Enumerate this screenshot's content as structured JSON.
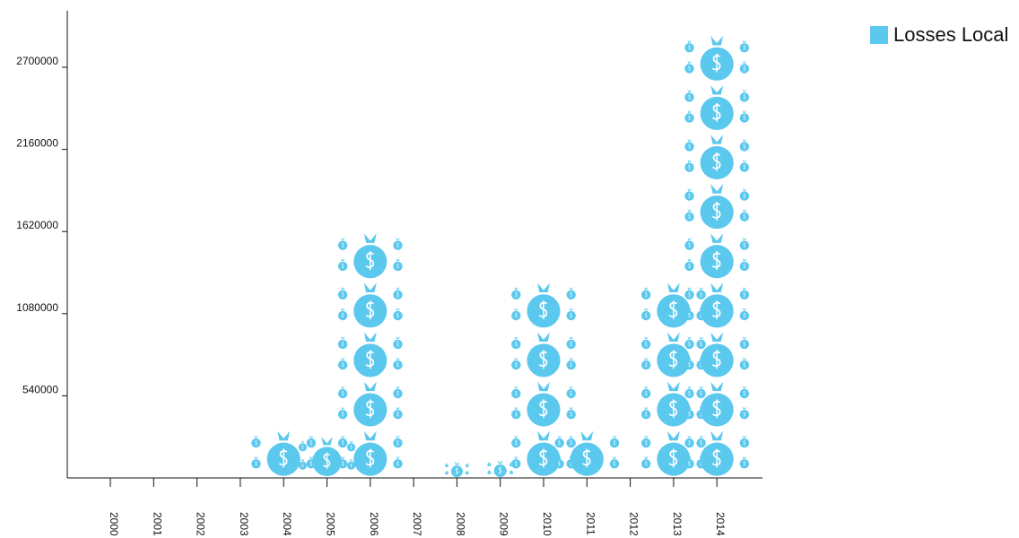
{
  "chart_data": {
    "type": "bar",
    "categories": [
      "2000",
      "2001",
      "2002",
      "2003",
      "2004",
      "2005",
      "2006",
      "2007",
      "2008",
      "2009",
      "2010",
      "2011",
      "2012",
      "2013",
      "2014"
    ],
    "series": [
      {
        "name": "Losses Local",
        "values": [
          0,
          0,
          0,
          0,
          500000,
          300000,
          1790000,
          0,
          120000,
          130000,
          1430000,
          440000,
          20000,
          1430000,
          2980000
        ]
      }
    ],
    "yticks": [
      540000,
      1080000,
      1620000,
      2160000,
      2700000
    ],
    "ylim": [
      0,
      3000000
    ],
    "color": "#5bc8ee",
    "legend_position": "top-right",
    "grid": false,
    "marker": "money-bag-icon"
  },
  "legend": {
    "label": "Losses Local"
  }
}
